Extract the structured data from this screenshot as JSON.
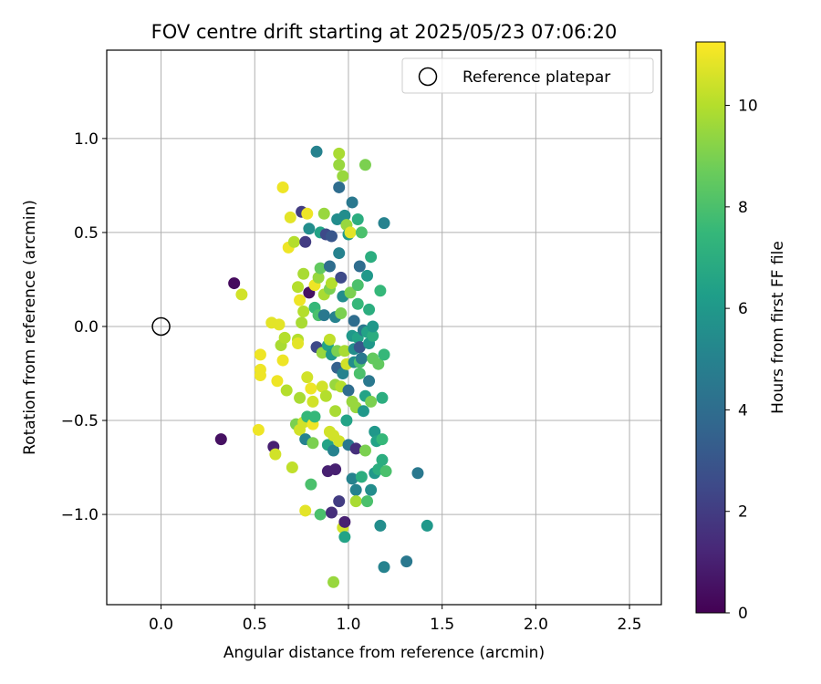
{
  "chart_data": {
    "type": "scatter",
    "title": "FOV centre drift starting at 2025/05/23 07:06:20",
    "xlabel": "Angular distance from reference (arcmin)",
    "ylabel": "Rotation from reference (arcmin)",
    "xlim": [
      -0.29,
      2.67
    ],
    "ylim": [
      -1.48,
      1.47
    ],
    "xticks": [
      0.0,
      0.5,
      1.0,
      1.5,
      2.0,
      2.5
    ],
    "xtick_labels": [
      "0.0",
      "0.5",
      "1.0",
      "1.5",
      "2.0",
      "2.5"
    ],
    "yticks": [
      -1.0,
      -0.5,
      0.0,
      0.5,
      1.0
    ],
    "ytick_labels": [
      "−1.0",
      "−0.5",
      "0.0",
      "0.5",
      "1.0"
    ],
    "grid": true,
    "legend": {
      "placement": "top-right",
      "entries": [
        {
          "label": "Reference platepar",
          "marker": "open-circle"
        }
      ]
    },
    "reference_point": {
      "x": 0.0,
      "y": 0.0
    },
    "colorbar": {
      "label": "Hours from first FF file",
      "colormap": "viridis",
      "range": [
        0,
        11.25
      ],
      "ticks": [
        0,
        2,
        4,
        6,
        8,
        10
      ],
      "tick_labels": [
        "0",
        "2",
        "4",
        "6",
        "8",
        "10"
      ]
    },
    "series": [
      {
        "marker": "filled-circle",
        "color_by": "hours",
        "points": [
          {
            "x": 0.39,
            "y": 0.23,
            "c": 0.3
          },
          {
            "x": 0.32,
            "y": -0.6,
            "c": 0.5
          },
          {
            "x": 0.43,
            "y": 0.17,
            "c": 10.5
          },
          {
            "x": 0.52,
            "y": -0.55,
            "c": 11.0
          },
          {
            "x": 0.53,
            "y": -0.23,
            "c": 11.0
          },
          {
            "x": 0.53,
            "y": -0.15,
            "c": 11.0
          },
          {
            "x": 0.53,
            "y": -0.26,
            "c": 11.0
          },
          {
            "x": 0.59,
            "y": 0.02,
            "c": 10.8
          },
          {
            "x": 0.6,
            "y": -0.64,
            "c": 1.0
          },
          {
            "x": 0.61,
            "y": -0.68,
            "c": 10.5
          },
          {
            "x": 0.62,
            "y": -0.29,
            "c": 11.0
          },
          {
            "x": 0.63,
            "y": 0.01,
            "c": 10.8
          },
          {
            "x": 0.64,
            "y": -0.1,
            "c": 9.8
          },
          {
            "x": 0.65,
            "y": 0.74,
            "c": 11.0
          },
          {
            "x": 0.65,
            "y": -0.18,
            "c": 11.0
          },
          {
            "x": 0.66,
            "y": -0.06,
            "c": 10.0
          },
          {
            "x": 0.67,
            "y": -0.34,
            "c": 10.0
          },
          {
            "x": 0.68,
            "y": 0.42,
            "c": 11.0
          },
          {
            "x": 0.69,
            "y": 0.58,
            "c": 10.8
          },
          {
            "x": 0.7,
            "y": -0.75,
            "c": 10.2
          },
          {
            "x": 0.71,
            "y": 0.45,
            "c": 10.0
          },
          {
            "x": 0.72,
            "y": -0.52,
            "c": 9.0
          },
          {
            "x": 0.73,
            "y": -0.07,
            "c": 10.0
          },
          {
            "x": 0.73,
            "y": -0.09,
            "c": 10.8
          },
          {
            "x": 0.73,
            "y": 0.21,
            "c": 10.0
          },
          {
            "x": 0.74,
            "y": -0.55,
            "c": 10.5
          },
          {
            "x": 0.74,
            "y": 0.14,
            "c": 11.0
          },
          {
            "x": 0.74,
            "y": -0.38,
            "c": 9.8
          },
          {
            "x": 0.75,
            "y": 0.61,
            "c": 2.0
          },
          {
            "x": 0.75,
            "y": 0.02,
            "c": 9.8
          },
          {
            "x": 0.76,
            "y": -0.51,
            "c": 10.5
          },
          {
            "x": 0.76,
            "y": 0.28,
            "c": 9.8
          },
          {
            "x": 0.76,
            "y": 0.08,
            "c": 10.0
          },
          {
            "x": 0.77,
            "y": 0.45,
            "c": 2.0
          },
          {
            "x": 0.77,
            "y": -0.6,
            "c": 5.0
          },
          {
            "x": 0.77,
            "y": -0.98,
            "c": 10.8
          },
          {
            "x": 0.78,
            "y": -0.48,
            "c": 7.5
          },
          {
            "x": 0.78,
            "y": 0.6,
            "c": 11.0
          },
          {
            "x": 0.78,
            "y": -0.27,
            "c": 10.5
          },
          {
            "x": 0.79,
            "y": 0.52,
            "c": 5.5
          },
          {
            "x": 0.79,
            "y": 0.18,
            "c": 0.5
          },
          {
            "x": 0.8,
            "y": -0.84,
            "c": 8.0
          },
          {
            "x": 0.8,
            "y": -0.33,
            "c": 11.0
          },
          {
            "x": 0.81,
            "y": -0.52,
            "c": 11.0
          },
          {
            "x": 0.81,
            "y": -0.62,
            "c": 9.0
          },
          {
            "x": 0.81,
            "y": -0.4,
            "c": 10.5
          },
          {
            "x": 0.82,
            "y": 0.22,
            "c": 11.0
          },
          {
            "x": 0.82,
            "y": 0.1,
            "c": 7.5
          },
          {
            "x": 0.82,
            "y": -0.48,
            "c": 7.5
          },
          {
            "x": 0.83,
            "y": 0.93,
            "c": 5.0
          },
          {
            "x": 0.83,
            "y": -0.11,
            "c": 2.5
          },
          {
            "x": 0.84,
            "y": 0.26,
            "c": 9.5
          },
          {
            "x": 0.84,
            "y": 0.06,
            "c": 8.0
          },
          {
            "x": 0.85,
            "y": 0.31,
            "c": 8.5
          },
          {
            "x": 0.85,
            "y": -1.0,
            "c": 8.0
          },
          {
            "x": 0.85,
            "y": 0.5,
            "c": 6.5
          },
          {
            "x": 0.86,
            "y": -0.32,
            "c": 10.5
          },
          {
            "x": 0.86,
            "y": -0.14,
            "c": 9.5
          },
          {
            "x": 0.87,
            "y": 0.6,
            "c": 9.5
          },
          {
            "x": 0.87,
            "y": 0.17,
            "c": 9.8
          },
          {
            "x": 0.87,
            "y": 0.06,
            "c": 4.5
          },
          {
            "x": 0.88,
            "y": -0.37,
            "c": 10.0
          },
          {
            "x": 0.88,
            "y": 0.49,
            "c": 2.5
          },
          {
            "x": 0.89,
            "y": -0.77,
            "c": 1.0
          },
          {
            "x": 0.89,
            "y": -0.1,
            "c": 6.5
          },
          {
            "x": 0.89,
            "y": -0.63,
            "c": 6.5
          },
          {
            "x": 0.9,
            "y": 0.32,
            "c": 4.0
          },
          {
            "x": 0.9,
            "y": -0.56,
            "c": 10.5
          },
          {
            "x": 0.9,
            "y": -0.07,
            "c": 10.2
          },
          {
            "x": 0.9,
            "y": 0.2,
            "c": 9.0
          },
          {
            "x": 0.91,
            "y": 0.48,
            "c": 3.0
          },
          {
            "x": 0.91,
            "y": -0.15,
            "c": 6.0
          },
          {
            "x": 0.91,
            "y": -0.99,
            "c": 1.5
          },
          {
            "x": 0.91,
            "y": 0.23,
            "c": 10.0
          },
          {
            "x": 0.92,
            "y": -0.66,
            "c": 5.0
          },
          {
            "x": 0.92,
            "y": -0.58,
            "c": 10.5
          },
          {
            "x": 0.92,
            "y": -1.36,
            "c": 9.5
          },
          {
            "x": 0.93,
            "y": -0.31,
            "c": 9.5
          },
          {
            "x": 0.93,
            "y": 0.05,
            "c": 5.0
          },
          {
            "x": 0.93,
            "y": -0.76,
            "c": 1.0
          },
          {
            "x": 0.93,
            "y": -0.45,
            "c": 9.8
          },
          {
            "x": 0.94,
            "y": 0.57,
            "c": 5.5
          },
          {
            "x": 0.94,
            "y": -0.22,
            "c": 3.5
          },
          {
            "x": 0.94,
            "y": -0.13,
            "c": 9.0
          },
          {
            "x": 0.95,
            "y": 0.74,
            "c": 4.0
          },
          {
            "x": 0.95,
            "y": 0.86,
            "c": 9.5
          },
          {
            "x": 0.95,
            "y": -0.61,
            "c": 10.5
          },
          {
            "x": 0.95,
            "y": 0.92,
            "c": 9.8
          },
          {
            "x": 0.95,
            "y": 0.39,
            "c": 5.0
          },
          {
            "x": 0.95,
            "y": -0.93,
            "c": 2.0
          },
          {
            "x": 0.96,
            "y": 0.07,
            "c": 9.0
          },
          {
            "x": 0.96,
            "y": -0.32,
            "c": 10.0
          },
          {
            "x": 0.96,
            "y": 0.26,
            "c": 2.5
          },
          {
            "x": 0.97,
            "y": 0.16,
            "c": 5.5
          },
          {
            "x": 0.97,
            "y": 0.8,
            "c": 9.5
          },
          {
            "x": 0.97,
            "y": -0.25,
            "c": 5.0
          },
          {
            "x": 0.97,
            "y": -1.07,
            "c": 10.5
          },
          {
            "x": 0.98,
            "y": -1.04,
            "c": 1.0
          },
          {
            "x": 0.98,
            "y": -0.13,
            "c": 9.8
          },
          {
            "x": 0.98,
            "y": 0.59,
            "c": 5.5
          },
          {
            "x": 0.98,
            "y": -1.12,
            "c": 6.5
          },
          {
            "x": 0.99,
            "y": -0.2,
            "c": 10.5
          },
          {
            "x": 0.99,
            "y": -0.5,
            "c": 6.5
          },
          {
            "x": 0.99,
            "y": 0.54,
            "c": 9.5
          },
          {
            "x": 1.0,
            "y": -0.34,
            "c": 4.0
          },
          {
            "x": 1.0,
            "y": 0.49,
            "c": 6.0
          },
          {
            "x": 1.0,
            "y": -0.63,
            "c": 4.5
          },
          {
            "x": 1.01,
            "y": 0.18,
            "c": 9.0
          },
          {
            "x": 1.01,
            "y": 0.5,
            "c": 10.8
          },
          {
            "x": 1.02,
            "y": -0.81,
            "c": 5.0
          },
          {
            "x": 1.02,
            "y": -0.05,
            "c": 6.0
          },
          {
            "x": 1.02,
            "y": 0.66,
            "c": 4.5
          },
          {
            "x": 1.02,
            "y": -0.4,
            "c": 9.5
          },
          {
            "x": 1.03,
            "y": 0.03,
            "c": 4.0
          },
          {
            "x": 1.03,
            "y": -0.12,
            "c": 5.5
          },
          {
            "x": 1.03,
            "y": -0.19,
            "c": 5.5
          },
          {
            "x": 1.04,
            "y": -0.43,
            "c": 9.5
          },
          {
            "x": 1.04,
            "y": -0.87,
            "c": 5.0
          },
          {
            "x": 1.04,
            "y": -0.65,
            "c": 1.5
          },
          {
            "x": 1.04,
            "y": -0.93,
            "c": 9.8
          },
          {
            "x": 1.05,
            "y": 0.57,
            "c": 7.0
          },
          {
            "x": 1.05,
            "y": 0.22,
            "c": 8.0
          },
          {
            "x": 1.05,
            "y": -0.06,
            "c": 6.5
          },
          {
            "x": 1.05,
            "y": 0.12,
            "c": 7.5
          },
          {
            "x": 1.06,
            "y": -0.25,
            "c": 8.0
          },
          {
            "x": 1.06,
            "y": -0.19,
            "c": 8.0
          },
          {
            "x": 1.06,
            "y": 0.32,
            "c": 4.0
          },
          {
            "x": 1.06,
            "y": -0.11,
            "c": 3.0
          },
          {
            "x": 1.07,
            "y": -0.8,
            "c": 7.0
          },
          {
            "x": 1.07,
            "y": -0.17,
            "c": 4.5
          },
          {
            "x": 1.07,
            "y": 0.5,
            "c": 8.0
          },
          {
            "x": 1.08,
            "y": -0.02,
            "c": 4.5
          },
          {
            "x": 1.08,
            "y": -0.45,
            "c": 6.0
          },
          {
            "x": 1.09,
            "y": 0.86,
            "c": 9.0
          },
          {
            "x": 1.09,
            "y": -0.66,
            "c": 9.0
          },
          {
            "x": 1.09,
            "y": -0.37,
            "c": 6.5
          },
          {
            "x": 1.1,
            "y": 0.27,
            "c": 6.0
          },
          {
            "x": 1.1,
            "y": -0.93,
            "c": 8.0
          },
          {
            "x": 1.1,
            "y": -0.03,
            "c": 6.5
          },
          {
            "x": 1.11,
            "y": -0.29,
            "c": 4.5
          },
          {
            "x": 1.11,
            "y": -0.09,
            "c": 6.0
          },
          {
            "x": 1.11,
            "y": 0.09,
            "c": 7.0
          },
          {
            "x": 1.12,
            "y": -0.4,
            "c": 9.0
          },
          {
            "x": 1.12,
            "y": -0.87,
            "c": 5.5
          },
          {
            "x": 1.12,
            "y": 0.37,
            "c": 7.0
          },
          {
            "x": 1.13,
            "y": -0.05,
            "c": 7.0
          },
          {
            "x": 1.13,
            "y": -0.17,
            "c": 8.5
          },
          {
            "x": 1.13,
            "y": 0.0,
            "c": 6.0
          },
          {
            "x": 1.14,
            "y": -0.56,
            "c": 6.0
          },
          {
            "x": 1.14,
            "y": -0.78,
            "c": 6.0
          },
          {
            "x": 1.15,
            "y": -0.61,
            "c": 6.5
          },
          {
            "x": 1.16,
            "y": -0.2,
            "c": 8.5
          },
          {
            "x": 1.16,
            "y": -0.76,
            "c": 7.0
          },
          {
            "x": 1.17,
            "y": 0.19,
            "c": 7.5
          },
          {
            "x": 1.17,
            "y": -1.06,
            "c": 5.5
          },
          {
            "x": 1.18,
            "y": -0.38,
            "c": 7.0
          },
          {
            "x": 1.18,
            "y": -0.6,
            "c": 7.5
          },
          {
            "x": 1.18,
            "y": -0.71,
            "c": 7.0
          },
          {
            "x": 1.19,
            "y": -0.15,
            "c": 7.5
          },
          {
            "x": 1.19,
            "y": 0.55,
            "c": 5.0
          },
          {
            "x": 1.19,
            "y": -1.28,
            "c": 5.0
          },
          {
            "x": 1.2,
            "y": -0.77,
            "c": 8.0
          },
          {
            "x": 1.31,
            "y": -1.25,
            "c": 4.5
          },
          {
            "x": 1.37,
            "y": -0.78,
            "c": 4.5
          },
          {
            "x": 1.42,
            "y": -1.06,
            "c": 6.0
          }
        ]
      }
    ]
  }
}
